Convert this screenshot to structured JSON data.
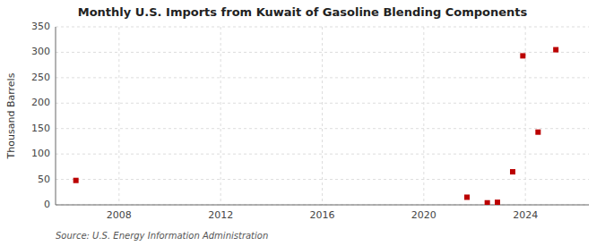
{
  "chart_data": {
    "type": "scatter",
    "title": "Monthly U.S. Imports from Kuwait of Gasoline Blending Components",
    "ylabel": "Thousand Barrels",
    "source": "Source: U.S. Energy Information Administration",
    "color": "#bb0000",
    "marker": "square",
    "x": [
      2006.3,
      2021.7,
      2022.5,
      2022.9,
      2023.5,
      2023.9,
      2024.5,
      2025.2
    ],
    "values": [
      48,
      15,
      4,
      5,
      65,
      293,
      143,
      305
    ],
    "xlim": [
      2005.5,
      2026.5
    ],
    "ylim": [
      0,
      350
    ],
    "xticks": [
      2008,
      2012,
      2016,
      2020,
      2024
    ],
    "yticks": [
      0,
      50,
      100,
      150,
      200,
      250,
      300,
      350
    ],
    "grid": true
  }
}
